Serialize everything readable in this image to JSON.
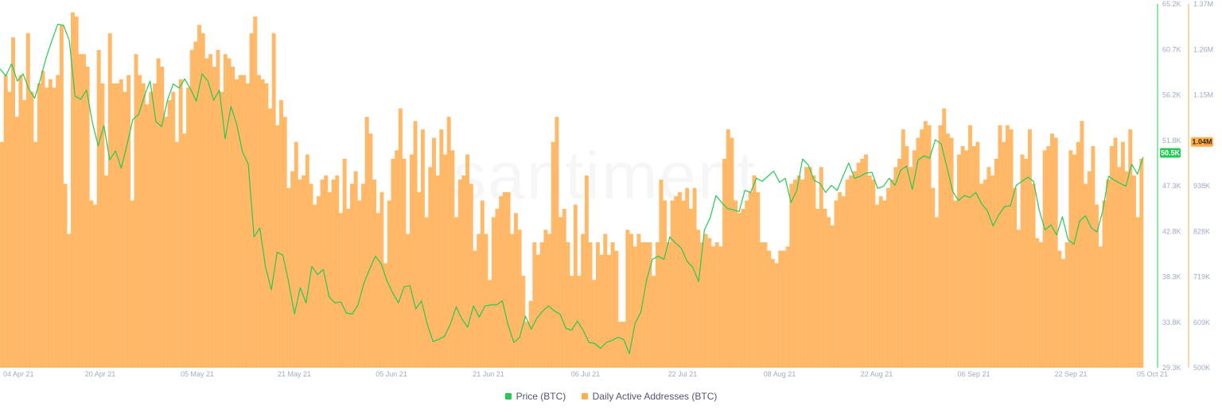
{
  "watermark": "santiment",
  "legend": [
    {
      "name": "Price (BTC)",
      "color": "#26c953"
    },
    {
      "name": "Daily Active Addresses (BTC)",
      "color": "#ffad4d"
    }
  ],
  "badges": {
    "price": {
      "text": "50.5K",
      "value": 50500,
      "color": "#26c953"
    },
    "addresses": {
      "text": "1.04M",
      "value": 1040000,
      "color": "#ffad4d"
    }
  },
  "chart_data": {
    "type": "bar",
    "x_start": "2021-04-04",
    "x_end": "2021-10-05",
    "x_ticks": [
      "04 Apr 21",
      "20 Apr 21",
      "05 May 21",
      "21 May 21",
      "05 Jun 21",
      "21 Jun 21",
      "06 Jul 21",
      "22 Jul 21",
      "08 Aug 21",
      "22 Aug 21",
      "06 Sep 21",
      "22 Sep 21",
      "05 Oct 21"
    ],
    "y_left": {
      "label": "",
      "ticks": [
        "65.2K",
        "60.7K",
        "56.2K",
        "51.8K",
        "47.3K",
        "42.8K",
        "38.3K",
        "33.8K",
        "29.3K"
      ],
      "range": [
        29300,
        65200
      ]
    },
    "y_right": {
      "label": "",
      "ticks": [
        "1.37M",
        "1.26M",
        "1.15M",
        "1.04M",
        "938K",
        "828K",
        "719K",
        "609K",
        "500K"
      ],
      "range": [
        500000,
        1370000
      ]
    },
    "series": [
      {
        "name": "Daily Active Addresses (BTC)",
        "axis": "right",
        "color": "#ffad4d",
        "type": "bar",
        "values": [
          1040000,
          1200000,
          1160000,
          1290000,
          1100000,
          1200000,
          1140000,
          1300000,
          1160000,
          1040000,
          1180000,
          1210000,
          1170000,
          1190000,
          1170000,
          1200000,
          1320000,
          940000,
          820000,
          1350000,
          1340000,
          1250000,
          1250000,
          1220000,
          900000,
          890000,
          1260000,
          1180000,
          960000,
          1300000,
          1180000,
          1180000,
          1190000,
          1160000,
          1200000,
          900000,
          1250000,
          1200000,
          1180000,
          1130000,
          1160000,
          1180000,
          1240000,
          1220000,
          1100000,
          1140000,
          1160000,
          1040000,
          1190000,
          1060000,
          1170000,
          1260000,
          1280000,
          1320000,
          1300000,
          1240000,
          1250000,
          1220000,
          1260000,
          1160000,
          1250000,
          1240000,
          1220000,
          1190000,
          1200000,
          1200000,
          1180000,
          1300000,
          1340000,
          1200000,
          1190000,
          1180000,
          1120000,
          1300000,
          1080000,
          1140000,
          1100000,
          930000,
          970000,
          1040000,
          950000,
          960000,
          1010000,
          940000,
          890000,
          910000,
          950000,
          960000,
          920000,
          950000,
          960000,
          870000,
          1000000,
          880000,
          940000,
          970000,
          900000,
          940000,
          1100000,
          1060000,
          950000,
          870000,
          920000,
          750000,
          900000,
          1000000,
          1020000,
          1120000,
          1000000,
          820000,
          1010000,
          1090000,
          920000,
          1070000,
          860000,
          980000,
          1050000,
          960000,
          1070000,
          1010000,
          1100000,
          1020000,
          860000,
          950000,
          960000,
          1010000,
          940000,
          780000,
          820000,
          900000,
          820000,
          710000,
          860000,
          880000,
          910000,
          920000,
          920000,
          820000,
          870000,
          830000,
          720000,
          610000,
          660000,
          800000,
          770000,
          800000,
          830000,
          820000,
          1040000,
          1100000,
          860000,
          880000,
          800000,
          720000,
          890000,
          720000,
          820000,
          960000,
          800000,
          710000,
          800000,
          770000,
          820000,
          770000,
          800000,
          780000,
          610000,
          610000,
          830000,
          820000,
          790000,
          820000,
          800000,
          800000,
          800000,
          720000,
          800000,
          950000,
          900000,
          800000,
          900000,
          910000,
          920000,
          900000,
          930000,
          880000,
          930000,
          830000,
          800000,
          820000,
          810000,
          790000,
          800000,
          790000,
          1000000,
          1070000,
          1050000,
          900000,
          870000,
          880000,
          900000,
          920000,
          960000,
          920000,
          800000,
          800000,
          780000,
          760000,
          750000,
          780000,
          780000,
          790000,
          940000,
          950000,
          960000,
          950000,
          980000,
          980000,
          960000,
          880000,
          980000,
          880000,
          860000,
          840000,
          900000,
          920000,
          910000,
          950000,
          960000,
          970000,
          990000,
          1000000,
          1010000,
          960000,
          950000,
          890000,
          910000,
          900000,
          930000,
          950000,
          980000,
          1000000,
          1070000,
          1030000,
          980000,
          1020000,
          1050000,
          1070000,
          1090000,
          1080000,
          930000,
          860000,
          1080000,
          1120000,
          1060000,
          1050000,
          900000,
          1010000,
          1030000,
          1020000,
          1080000,
          1030000,
          1040000,
          940000,
          950000,
          980000,
          960000,
          1000000,
          1080000,
          1040000,
          1080000,
          1070000,
          930000,
          830000,
          1010000,
          1000000,
          1070000,
          940000,
          810000,
          800000,
          1020000,
          1030000,
          1060000,
          1050000,
          780000,
          760000,
          800000,
          1020000,
          1010000,
          1040000,
          1090000,
          940000,
          970000,
          1030000,
          890000,
          790000,
          900000,
          950000,
          1030000,
          1050000,
          980000,
          1040000,
          970000,
          1070000,
          960000,
          860000,
          1000000
        ],
        "_note": "Approximate daily values estimated from bar heights"
      },
      {
        "name": "Price (BTC)",
        "axis": "left",
        "color": "#26c953",
        "type": "line",
        "values": [
          58800,
          58100,
          59300,
          57600,
          58300,
          56800,
          55900,
          57800,
          59900,
          61600,
          63200,
          63100,
          61600,
          56100,
          55800,
          56700,
          53500,
          51200,
          53200,
          49800,
          50700,
          49000,
          51300,
          53800,
          54300,
          56100,
          57600,
          53600,
          53100,
          55700,
          57300,
          56900,
          57800,
          56800,
          55600,
          58300,
          57600,
          55700,
          56700,
          51900,
          55100,
          53300,
          50600,
          49400,
          42200,
          43100,
          39200,
          37000,
          40700,
          40400,
          37700,
          34600,
          37200,
          35700,
          39300,
          38500,
          39000,
          36300,
          35700,
          35800,
          34700,
          34600,
          35500,
          37600,
          39000,
          40300,
          39600,
          37900,
          36700,
          35700,
          37300,
          37400,
          35100,
          35900,
          33600,
          31900,
          32100,
          32400,
          33600,
          35300,
          34100,
          33300,
          35400,
          34300,
          35400,
          35500,
          35500,
          35900,
          33500,
          31800,
          32300,
          34400,
          33100,
          34200,
          34900,
          35400,
          34900,
          34600,
          33200,
          33000,
          33900,
          33000,
          31800,
          31700,
          31200,
          31800,
          32000,
          32300,
          32100,
          30700,
          33700,
          34800,
          38000,
          40000,
          40300,
          40000,
          42200,
          41600,
          41100,
          39800,
          39200,
          37800,
          42900,
          44100,
          46300,
          45600,
          45000,
          44900,
          44700,
          46800,
          46600,
          48000,
          47700,
          48200,
          48700,
          47600,
          48000,
          45600,
          46800,
          49900,
          49300,
          47800,
          47500,
          46600,
          47300,
          46800,
          48200,
          49500,
          48000,
          48200,
          48500,
          48600,
          47000,
          47200,
          48000,
          47300,
          48800,
          49200,
          46900,
          49800,
          50200,
          50000,
          51800,
          51400,
          49100,
          46700,
          45800,
          46300,
          46100,
          46600,
          45500,
          44800,
          43300,
          44400,
          45200,
          45300,
          47300,
          47700,
          48100,
          47700,
          44800,
          42900,
          43400,
          42400,
          44200,
          41900,
          41500,
          43800,
          44300,
          43100,
          42700,
          44800,
          48200,
          47800,
          47500,
          47200,
          49400,
          48400,
          50100
        ],
        "_note": "Approximate values estimated from line path"
      }
    ],
    "grid": false,
    "legend_position": "bottom-center"
  }
}
